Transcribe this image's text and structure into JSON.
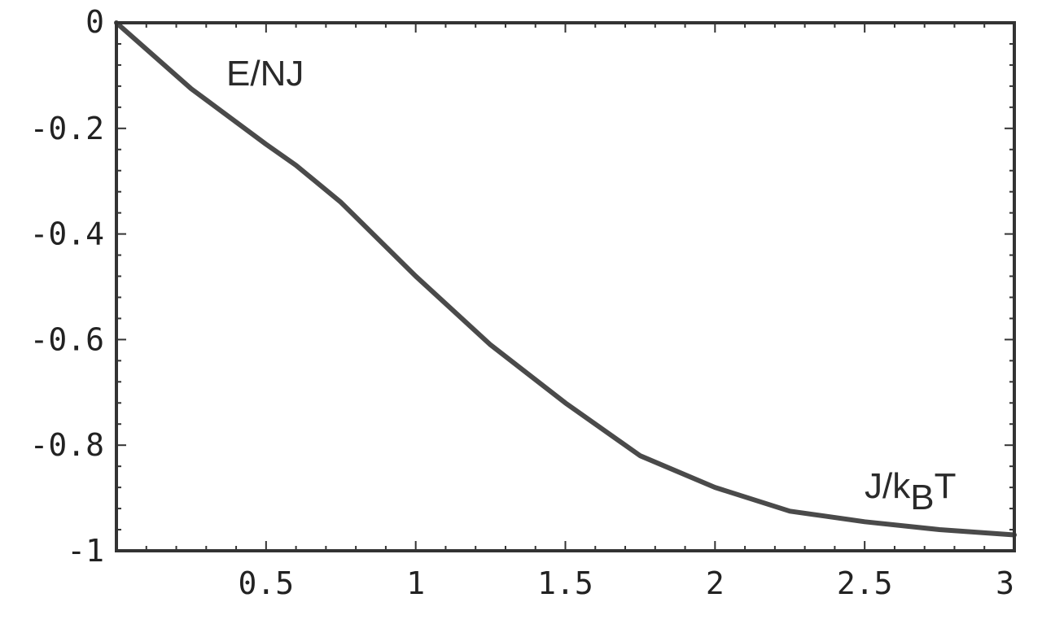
{
  "chart_data": {
    "type": "line",
    "title": "",
    "xlabel": "J/k_BT",
    "ylabel": "E/NJ",
    "xlim": [
      0,
      3
    ],
    "ylim": [
      -1,
      0
    ],
    "grid": false,
    "legend": "none",
    "x_ticks": [
      "0.5",
      "1",
      "1.5",
      "2",
      "2.5",
      "3"
    ],
    "y_ticks": [
      "0",
      "-0.2",
      "-0.4",
      "-0.6",
      "-0.8",
      "-1"
    ],
    "y_annotation": "E/NJ",
    "x_annotation": {
      "main": "J/k",
      "sub": "B",
      "tail": "T"
    },
    "series": [
      {
        "x": [
          0,
          0.25,
          0.5,
          0.6,
          0.75,
          1.0,
          1.25,
          1.5,
          1.75,
          2.0,
          2.25,
          2.5,
          2.75,
          3.0
        ],
        "y": [
          0,
          -0.125,
          -0.23,
          -0.27,
          -0.34,
          -0.48,
          -0.61,
          -0.72,
          -0.82,
          -0.88,
          -0.925,
          -0.945,
          -0.96,
          -0.97
        ]
      }
    ],
    "colors": {
      "line": "#4a4a4a",
      "frame": "#333333"
    }
  }
}
